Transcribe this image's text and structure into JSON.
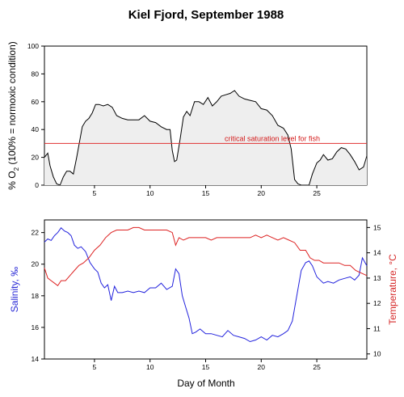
{
  "title": "Kiel Fjord, September 1988",
  "top_annotation": "critical saturation level  for fish",
  "colors": {
    "oxygen_line": "#000000",
    "oxygen_fill": "#eeeeee",
    "critical_line": "#e03030",
    "salinity": "#2222dd",
    "temperature": "#dd2222",
    "annotation": "#d41a1a"
  },
  "chart_data": [
    {
      "type": "area",
      "title": "Kiel Fjord, September 1988",
      "ylabel_parts": [
        "% O",
        "2",
        " (100% = normoxic condition)"
      ],
      "xlim": [
        0.5,
        29.5
      ],
      "ylim": [
        0,
        100
      ],
      "xticks": [
        5,
        10,
        15,
        20,
        25
      ],
      "yticks": [
        0,
        20,
        40,
        60,
        80,
        100
      ],
      "reference_line": {
        "y": 30,
        "label": "critical saturation level  for fish"
      },
      "series": [
        {
          "x": [
            0.5,
            0.8,
            1.0,
            1.3,
            1.6,
            1.9,
            2.2,
            2.5,
            2.8,
            3.1,
            3.4,
            3.7,
            3.9,
            4.2,
            4.5,
            4.8,
            5.1,
            5.4,
            5.8,
            6.2,
            6.6,
            7.0,
            7.5,
            8.0,
            8.5,
            9.0,
            9.5,
            10.0,
            10.5,
            11.0,
            11.5,
            11.8,
            12.0,
            12.2,
            12.4,
            12.7,
            13.0,
            13.3,
            13.6,
            14.0,
            14.4,
            14.8,
            15.2,
            15.6,
            16.0,
            16.4,
            16.8,
            17.2,
            17.6,
            18.0,
            18.5,
            19.0,
            19.5,
            20.0,
            20.5,
            21.0,
            21.5,
            22.0,
            22.4,
            22.7,
            23.0,
            23.3,
            23.6,
            24.0,
            24.3,
            24.6,
            25.0,
            25.3,
            25.6,
            26.0,
            26.4,
            26.8,
            27.2,
            27.6,
            28.0,
            28.4,
            28.8,
            29.2,
            29.5
          ],
          "values": [
            20,
            23,
            14,
            6,
            1,
            0,
            6,
            10,
            10,
            8,
            20,
            33,
            42,
            46,
            48,
            52,
            58,
            58,
            57,
            58,
            56,
            50,
            48,
            47,
            47,
            47,
            50,
            46,
            45,
            42,
            40,
            40,
            25,
            17,
            18,
            33,
            49,
            53,
            50,
            60,
            60,
            58,
            63,
            57,
            60,
            64,
            65,
            66,
            68,
            64,
            62,
            61,
            60,
            55,
            54,
            50,
            43,
            41,
            36,
            26,
            4,
            1,
            0,
            0,
            0,
            8,
            16,
            18,
            22,
            18,
            19,
            24,
            27,
            26,
            22,
            17,
            11,
            13,
            21
          ]
        }
      ]
    },
    {
      "type": "line",
      "xlabel": "Day of Month",
      "ylabel": "Salinity, ‰",
      "ylabel2": "Temperature, °C",
      "xlim": [
        0.5,
        29.5
      ],
      "ylim": [
        14,
        22.8
      ],
      "ylim2": [
        9.8,
        15.3
      ],
      "xticks": [
        5,
        10,
        15,
        20,
        25
      ],
      "yticks": [
        14,
        16,
        18,
        20,
        22
      ],
      "yticks2": [
        10,
        11,
        12,
        13,
        14,
        15
      ],
      "series": [
        {
          "name": "Salinity",
          "axis": "left",
          "x": [
            0.5,
            0.8,
            1.1,
            1.4,
            1.7,
            2.0,
            2.3,
            2.6,
            2.9,
            3.2,
            3.5,
            3.8,
            4.2,
            4.6,
            5.0,
            5.3,
            5.6,
            5.9,
            6.2,
            6.5,
            6.8,
            7.1,
            7.5,
            8.0,
            8.5,
            9.0,
            9.5,
            10.0,
            10.5,
            11.0,
            11.5,
            12.0,
            12.3,
            12.6,
            12.9,
            13.2,
            13.5,
            13.8,
            14.1,
            14.5,
            15.0,
            15.5,
            16.0,
            16.5,
            17.0,
            17.5,
            18.0,
            18.5,
            19.0,
            19.5,
            20.0,
            20.5,
            21.0,
            21.5,
            22.0,
            22.4,
            22.8,
            23.2,
            23.6,
            24.0,
            24.3,
            24.6,
            25.0,
            25.3,
            25.6,
            26.0,
            26.5,
            27.0,
            27.5,
            28.0,
            28.4,
            28.8,
            29.1,
            29.5
          ],
          "values": [
            21.4,
            21.6,
            21.5,
            21.8,
            22.0,
            22.3,
            22.1,
            22.0,
            21.8,
            21.2,
            21.0,
            21.1,
            20.8,
            20.1,
            19.7,
            19.5,
            18.8,
            18.5,
            18.7,
            17.7,
            18.6,
            18.2,
            18.2,
            18.3,
            18.2,
            18.3,
            18.2,
            18.5,
            18.5,
            18.8,
            18.4,
            18.6,
            19.7,
            19.4,
            18.0,
            17.3,
            16.6,
            15.6,
            15.7,
            15.9,
            15.6,
            15.6,
            15.5,
            15.4,
            15.8,
            15.5,
            15.4,
            15.3,
            15.1,
            15.2,
            15.4,
            15.2,
            15.5,
            15.4,
            15.6,
            15.8,
            16.4,
            18.0,
            19.6,
            20.1,
            20.2,
            19.9,
            19.2,
            19.0,
            18.8,
            18.9,
            18.8,
            19.0,
            19.1,
            19.2,
            19.0,
            19.3,
            20.4,
            19.9
          ]
        },
        {
          "name": "Temperature",
          "axis": "right",
          "x": [
            0.5,
            0.8,
            1.1,
            1.4,
            1.7,
            2.0,
            2.4,
            2.8,
            3.2,
            3.6,
            4.0,
            4.5,
            5.0,
            5.5,
            6.0,
            6.5,
            7.0,
            7.5,
            8.0,
            8.5,
            9.0,
            9.5,
            10.0,
            10.5,
            11.0,
            11.5,
            12.0,
            12.3,
            12.6,
            13.0,
            13.5,
            14.0,
            14.5,
            15.0,
            15.5,
            16.0,
            16.5,
            17.0,
            17.5,
            18.0,
            18.5,
            19.0,
            19.5,
            20.0,
            20.5,
            21.0,
            21.5,
            22.0,
            22.5,
            23.0,
            23.5,
            24.0,
            24.4,
            24.8,
            25.2,
            25.6,
            26.0,
            26.5,
            27.0,
            27.5,
            28.0,
            28.5,
            29.0,
            29.5
          ],
          "values": [
            13.4,
            13.0,
            12.9,
            12.8,
            12.7,
            12.9,
            12.9,
            13.1,
            13.3,
            13.5,
            13.6,
            13.8,
            14.1,
            14.3,
            14.6,
            14.8,
            14.9,
            14.9,
            14.9,
            15.0,
            15.0,
            14.9,
            14.9,
            14.9,
            14.9,
            14.9,
            14.8,
            14.3,
            14.6,
            14.5,
            14.6,
            14.6,
            14.6,
            14.6,
            14.5,
            14.6,
            14.6,
            14.6,
            14.6,
            14.6,
            14.6,
            14.6,
            14.7,
            14.6,
            14.7,
            14.6,
            14.5,
            14.6,
            14.5,
            14.4,
            14.1,
            14.1,
            13.8,
            13.7,
            13.7,
            13.6,
            13.6,
            13.6,
            13.6,
            13.5,
            13.5,
            13.3,
            13.2,
            13.1
          ]
        }
      ]
    }
  ]
}
